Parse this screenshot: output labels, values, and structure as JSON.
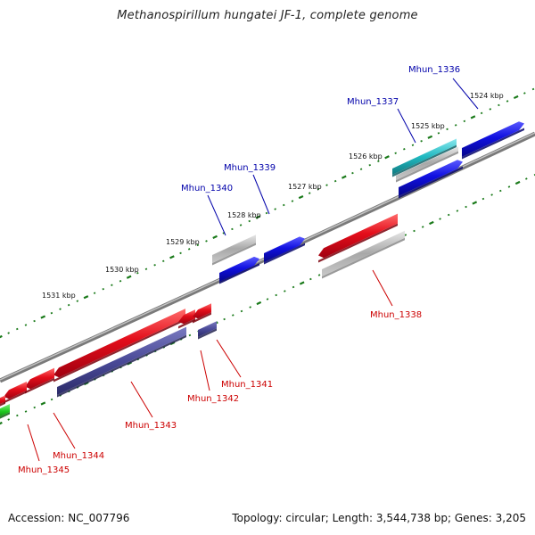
{
  "title": "Methanospirillum hungatei JF-1, complete genome",
  "footer": {
    "accession": "Accession: NC_007796",
    "summary": "Topology: circular; Length: 3,544,738 bp; Genes: 3,205"
  },
  "colors": {
    "forward_cds": "#1010e0",
    "reverse_cds": "#e00010",
    "gray_feature": "#a8a8a8",
    "cyan_feature": "#20b8c0",
    "purple_feature": "#4a4a98",
    "green_feature": "#22cc22",
    "backbone": "#808080",
    "ticks": "#1a7a1a",
    "forward_label": "#0000aa",
    "reverse_label": "#cc0000"
  },
  "scale_labels": [
    "1524 kbp",
    "1525 kbp",
    "1526 kbp",
    "1527 kbp",
    "1528 kbp",
    "1529 kbp",
    "1530 kbp",
    "1531 kbp"
  ],
  "genes": [
    {
      "name": "Mhun_1336",
      "strand": "forward",
      "icon": "arrow-right"
    },
    {
      "name": "Mhun_1337",
      "strand": "forward",
      "icon": "arrow-right"
    },
    {
      "name": "Mhun_1338",
      "strand": "reverse",
      "icon": "arrow-left"
    },
    {
      "name": "Mhun_1339",
      "strand": "forward",
      "icon": "arrow-right"
    },
    {
      "name": "Mhun_1340",
      "strand": "forward",
      "icon": "arrow-right"
    },
    {
      "name": "Mhun_1341",
      "strand": "reverse",
      "icon": "arrow-left"
    },
    {
      "name": "Mhun_1342",
      "strand": "reverse",
      "icon": "arrow-left"
    },
    {
      "name": "Mhun_1343",
      "strand": "reverse",
      "icon": "arrow-left"
    },
    {
      "name": "Mhun_1344",
      "strand": "reverse",
      "icon": "arrow-left"
    },
    {
      "name": "Mhun_1345",
      "strand": "reverse",
      "icon": "arrow-left"
    }
  ]
}
